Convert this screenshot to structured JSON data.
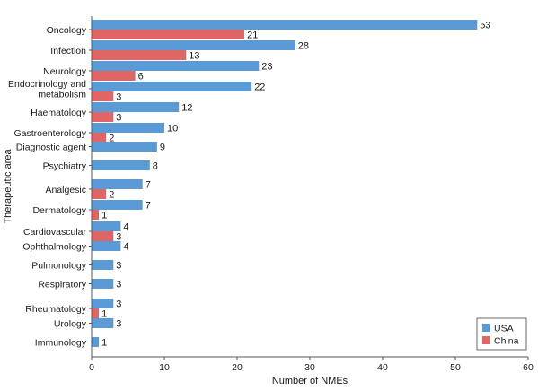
{
  "chart_data": {
    "type": "bar",
    "orientation": "horizontal",
    "categories": [
      "Oncology",
      "Infection",
      "Neurology",
      "Endocrinology and metabolism",
      "Haematology",
      "Gastroenterology",
      "Diagnostic agent",
      "Psychiatry",
      "Analgesic",
      "Dermatology",
      "Cardiovascular",
      "Ophthalmology",
      "Pulmonology",
      "Respiratory",
      "Rheumatology",
      "Urology",
      "Immunology"
    ],
    "category_lines": [
      [
        "Oncology"
      ],
      [
        "Infection"
      ],
      [
        "Neurology"
      ],
      [
        "Endocrinology and",
        "metabolism"
      ],
      [
        "Haematology"
      ],
      [
        "Gastroenterology"
      ],
      [
        "Diagnostic agent"
      ],
      [
        "Psychiatry"
      ],
      [
        "Analgesic"
      ],
      [
        "Dermatology"
      ],
      [
        "Cardiovascular"
      ],
      [
        "Ophthalmology"
      ],
      [
        "Pulmonology"
      ],
      [
        "Respiratory"
      ],
      [
        "Rheumatology"
      ],
      [
        "Urology"
      ],
      [
        "Immunology"
      ]
    ],
    "series": [
      {
        "name": "USA",
        "color": "#5b9bd5",
        "values": [
          53,
          28,
          23,
          22,
          12,
          10,
          9,
          8,
          7,
          7,
          4,
          4,
          3,
          3,
          3,
          3,
          1
        ]
      },
      {
        "name": "China",
        "color": "#e06666",
        "values": [
          21,
          13,
          6,
          3,
          3,
          2,
          null,
          null,
          2,
          1,
          3,
          null,
          null,
          null,
          1,
          null,
          null
        ]
      }
    ],
    "xlabel": "Number of NMEs",
    "ylabel": "Therapeutic area",
    "xlim": [
      0,
      60
    ],
    "xticks": [
      0,
      10,
      20,
      30,
      40,
      50,
      60
    ],
    "grid": false,
    "legend_position": "bottom-right"
  }
}
